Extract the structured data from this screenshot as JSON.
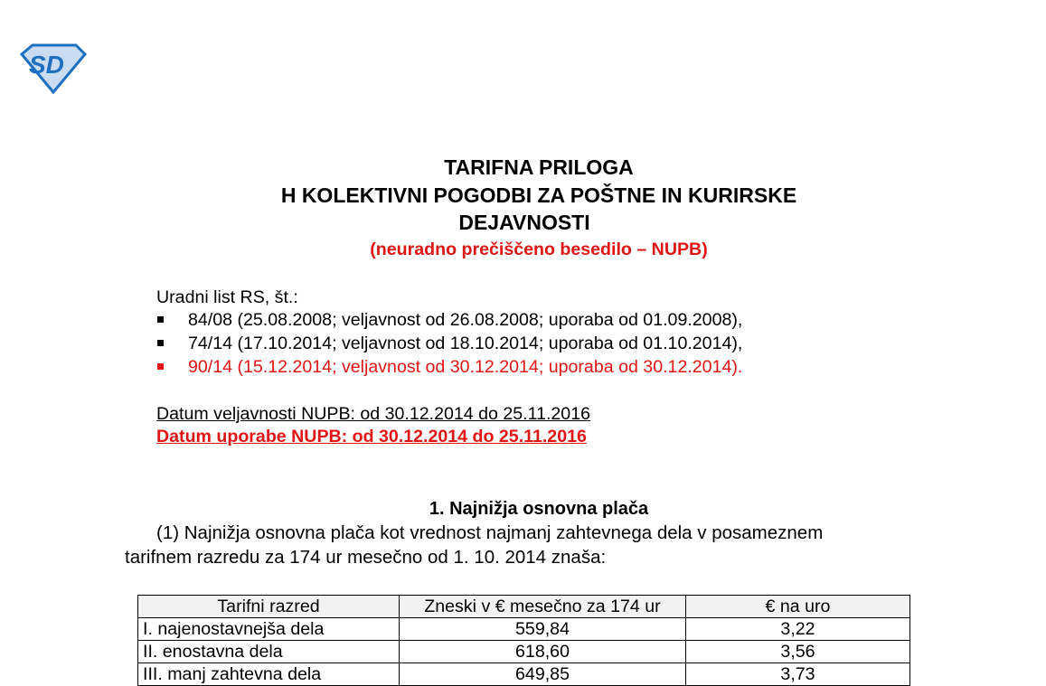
{
  "logo": {
    "text": "SD",
    "colors": {
      "outline": "#1f6fc0",
      "fill": "#c9dcf2"
    }
  },
  "title": {
    "line1": "TARIFNA PRILOGA",
    "line2": "H KOLEKTIVNI POGODBI ZA POŠTNE IN KURIRSKE",
    "line3": "DEJAVNOSTI",
    "subtitle": "(neuradno prečiščeno besedilo – NUPB)"
  },
  "gazette": {
    "heading": "Uradni list RS, št.:",
    "items": [
      {
        "text": "84/08 (25.08.2008; veljavnost od 26.08.2008; uporaba od 01.09.2008),"
      },
      {
        "text": "74/14 (17.10.2014; veljavnost od 18.10.2014; uporaba od 01.10.2014),"
      },
      {
        "text": "90/14 (15.12.2014; veljavnost od 30.12.2014; uporaba od 30.12.2014)."
      }
    ]
  },
  "validity": {
    "veljavnost": "Datum veljavnosti NUPB: od 30.12.2014 do 25.11.2016",
    "uporaba": "Datum uporabe NUPB: od 30.12.2014 do 25.11.2016"
  },
  "section1": {
    "heading": "1. Najnižja osnovna plača",
    "para_line1": "(1) Najnižja osnovna plača kot vrednost najmanj zahtevnega dela v posameznem",
    "para_line2": "tarifnem razredu za 174 ur mesečno od 1. 10. 2014 znaša:"
  },
  "table": {
    "headers": [
      "Tarifni razred",
      "Zneski v € mesečno za 174 ur",
      "€ na uro"
    ],
    "rows": [
      [
        "I. najenostavnejša dela",
        "559,84",
        "3,22"
      ],
      [
        "II. enostavna dela",
        "618,60",
        "3,56"
      ],
      [
        "III. manj zahtevna dela",
        "649,85",
        "3,73"
      ]
    ]
  },
  "colors": {
    "accent_red": "#e01515"
  }
}
